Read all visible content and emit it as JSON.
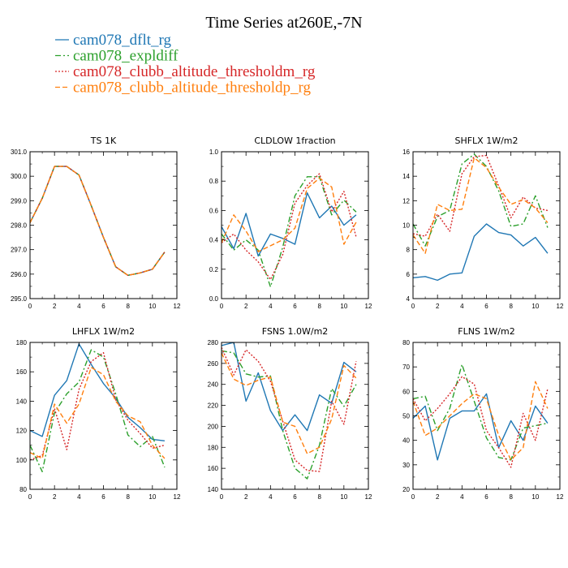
{
  "figure": {
    "title": "Time Series at260E,-7N"
  },
  "legend": [
    {
      "name": "cam078_dflt_rg",
      "color": "#1f77b4",
      "dash": "solid"
    },
    {
      "name": "cam078_expldiff",
      "color": "#2ca02c",
      "dash": "dashdot"
    },
    {
      "name": "cam078_clubb_altitude_thresholdm_rg",
      "color": "#d62728",
      "dash": "dotted"
    },
    {
      "name": "cam078_clubb_altitude_thresholdp_rg",
      "color": "#ff7f0e",
      "dash": "dashed"
    }
  ],
  "chart_data": [
    {
      "type": "line",
      "title": "TS   1K",
      "x": [
        0,
        1,
        2,
        3,
        4,
        5,
        6,
        7,
        8,
        9,
        10,
        11
      ],
      "xlim": [
        0,
        12
      ],
      "xticks": [
        "0",
        "2",
        "4",
        "6",
        "8",
        "10",
        "12"
      ],
      "ylim": [
        295.0,
        301.0
      ],
      "yticks": [
        "295.0",
        "296.0",
        "297.0",
        "298.0",
        "299.0",
        "300.0",
        "301.0"
      ],
      "series": [
        {
          "name": "cam078_dflt_rg",
          "values": [
            298.1,
            299.1,
            300.4,
            300.4,
            300.05,
            298.8,
            297.5,
            296.3,
            295.95,
            296.05,
            296.2,
            296.9
          ]
        },
        {
          "name": "cam078_expldiff",
          "values": [
            298.1,
            299.1,
            300.4,
            300.4,
            300.05,
            298.8,
            297.5,
            296.3,
            295.95,
            296.05,
            296.2,
            296.9
          ]
        },
        {
          "name": "cam078_clubb_altitude_thresholdm_rg",
          "values": [
            298.1,
            299.1,
            300.4,
            300.4,
            300.05,
            298.8,
            297.5,
            296.3,
            295.95,
            296.05,
            296.2,
            296.9
          ]
        },
        {
          "name": "cam078_clubb_altitude_thresholdp_rg",
          "values": [
            298.1,
            299.1,
            300.4,
            300.4,
            300.05,
            298.8,
            297.5,
            296.3,
            295.95,
            296.05,
            296.2,
            296.9
          ]
        }
      ]
    },
    {
      "type": "line",
      "title": "CLDLOW   1fraction",
      "x": [
        0,
        1,
        2,
        3,
        4,
        5,
        6,
        7,
        8,
        9,
        10,
        11
      ],
      "xlim": [
        0,
        12
      ],
      "xticks": [
        "0",
        "2",
        "4",
        "6",
        "8",
        "10",
        "12"
      ],
      "ylim": [
        0.0,
        1.0
      ],
      "yticks": [
        "0.0",
        "0.2",
        "0.4",
        "0.6",
        "0.8",
        "1.0"
      ],
      "series": [
        {
          "name": "cam078_dflt_rg",
          "values": [
            0.49,
            0.34,
            0.58,
            0.29,
            0.44,
            0.41,
            0.37,
            0.72,
            0.55,
            0.63,
            0.5,
            0.57
          ]
        },
        {
          "name": "cam078_expldiff",
          "values": [
            0.44,
            0.33,
            0.4,
            0.33,
            0.08,
            0.35,
            0.7,
            0.83,
            0.83,
            0.57,
            0.67,
            0.59
          ]
        },
        {
          "name": "cam078_clubb_altitude_thresholdm_rg",
          "values": [
            0.38,
            0.44,
            0.33,
            0.25,
            0.13,
            0.3,
            0.65,
            0.77,
            0.85,
            0.59,
            0.73,
            0.42
          ]
        },
        {
          "name": "cam078_clubb_altitude_thresholdp_rg",
          "values": [
            0.38,
            0.57,
            0.46,
            0.32,
            0.36,
            0.4,
            0.48,
            0.75,
            0.82,
            0.76,
            0.37,
            0.52
          ]
        }
      ]
    },
    {
      "type": "line",
      "title": "SHFLX   1W/m2",
      "x": [
        0,
        1,
        2,
        3,
        4,
        5,
        6,
        7,
        8,
        9,
        10,
        11
      ],
      "xlim": [
        0,
        12
      ],
      "xticks": [
        "0",
        "2",
        "4",
        "6",
        "8",
        "10",
        "12"
      ],
      "ylim": [
        4,
        16
      ],
      "yticks": [
        "4",
        "6",
        "8",
        "10",
        "12",
        "14",
        "16"
      ],
      "series": [
        {
          "name": "cam078_dflt_rg",
          "values": [
            5.7,
            5.8,
            5.5,
            6.0,
            6.1,
            9.1,
            10.1,
            9.4,
            9.2,
            8.3,
            9.0,
            7.7
          ]
        },
        {
          "name": "cam078_expldiff",
          "values": [
            10.1,
            8.3,
            10.7,
            11.2,
            15.0,
            15.8,
            14.8,
            12.8,
            9.9,
            10.1,
            12.4,
            9.8
          ]
        },
        {
          "name": "cam078_clubb_altitude_thresholdm_rg",
          "values": [
            9.3,
            9.1,
            10.9,
            9.5,
            14.2,
            15.6,
            15.7,
            13.2,
            10.6,
            12.3,
            11.4,
            11.2
          ]
        },
        {
          "name": "cam078_clubb_altitude_thresholdp_rg",
          "values": [
            9.2,
            7.7,
            11.7,
            11.2,
            11.3,
            15.5,
            14.7,
            13.1,
            11.7,
            12.1,
            11.4,
            10.2
          ]
        }
      ]
    },
    {
      "type": "line",
      "title": "LHFLX   1W/m2",
      "x": [
        0,
        1,
        2,
        3,
        4,
        5,
        6,
        7,
        8,
        9,
        10,
        11
      ],
      "xlim": [
        0,
        12
      ],
      "xticks": [
        "0",
        "2",
        "4",
        "6",
        "8",
        "10",
        "12"
      ],
      "ylim": [
        80,
        180
      ],
      "yticks": [
        "80",
        "100",
        "120",
        "140",
        "160",
        "180"
      ],
      "series": [
        {
          "name": "cam078_dflt_rg",
          "values": [
            120,
            116,
            144,
            154,
            179,
            165,
            152,
            142,
            129,
            122,
            114,
            113
          ]
        },
        {
          "name": "cam078_expldiff",
          "values": [
            110,
            92,
            132,
            145,
            153,
            175,
            170,
            145,
            117,
            109,
            116,
            95
          ]
        },
        {
          "name": "cam078_clubb_altitude_thresholdm_rg",
          "values": [
            100,
            103,
            135,
            107,
            148,
            167,
            173,
            141,
            127,
            118,
            108,
            110
          ]
        },
        {
          "name": "cam078_clubb_altitude_thresholdp_rg",
          "values": [
            105,
            101,
            138,
            125,
            138,
            163,
            158,
            140,
            130,
            126,
            110,
            101
          ]
        }
      ]
    },
    {
      "type": "line",
      "title": "FSNS   1.0W/m2",
      "x": [
        0,
        1,
        2,
        3,
        4,
        5,
        6,
        7,
        8,
        9,
        10,
        11
      ],
      "xlim": [
        0,
        12
      ],
      "xticks": [
        "0",
        "2",
        "4",
        "6",
        "8",
        "10",
        "12"
      ],
      "ylim": [
        140,
        280
      ],
      "yticks": [
        "140",
        "160",
        "180",
        "200",
        "220",
        "240",
        "260",
        "280"
      ],
      "series": [
        {
          "name": "cam078_dflt_rg",
          "values": [
            277,
            280,
            224,
            251,
            215,
            196,
            211,
            196,
            230,
            222,
            261,
            252
          ]
        },
        {
          "name": "cam078_expldiff",
          "values": [
            272,
            270,
            250,
            247,
            248,
            196,
            160,
            150,
            182,
            236,
            219,
            240
          ]
        },
        {
          "name": "cam078_clubb_altitude_thresholdm_rg",
          "values": [
            275,
            249,
            273,
            262,
            243,
            205,
            168,
            158,
            157,
            224,
            202,
            262
          ]
        },
        {
          "name": "cam078_clubb_altitude_thresholdp_rg",
          "values": [
            270,
            245,
            239,
            244,
            247,
            204,
            200,
            174,
            180,
            207,
            258,
            246
          ]
        }
      ]
    },
    {
      "type": "line",
      "title": "FLNS   1W/m2",
      "x": [
        0,
        1,
        2,
        3,
        4,
        5,
        6,
        7,
        8,
        9,
        10,
        11
      ],
      "xlim": [
        0,
        12
      ],
      "xticks": [
        "0",
        "2",
        "4",
        "6",
        "8",
        "10",
        "12"
      ],
      "ylim": [
        20,
        80
      ],
      "yticks": [
        "20",
        "30",
        "40",
        "50",
        "60",
        "70",
        "80"
      ],
      "series": [
        {
          "name": "cam078_dflt_rg",
          "values": [
            49,
            54,
            32,
            49,
            52,
            52,
            59,
            37,
            48,
            40,
            54,
            47
          ]
        },
        {
          "name": "cam078_expldiff",
          "values": [
            57,
            58,
            44,
            53,
            71,
            56,
            41,
            33,
            32,
            45,
            46,
            47
          ]
        },
        {
          "name": "cam078_clubb_altitude_thresholdm_rg",
          "values": [
            57,
            48,
            53,
            59,
            66,
            63,
            44,
            37,
            29,
            51,
            40,
            61
          ]
        },
        {
          "name": "cam078_clubb_altitude_thresholdp_rg",
          "values": [
            56,
            42,
            45,
            50,
            55,
            59,
            57,
            42,
            32,
            37,
            64,
            53
          ]
        }
      ]
    }
  ]
}
